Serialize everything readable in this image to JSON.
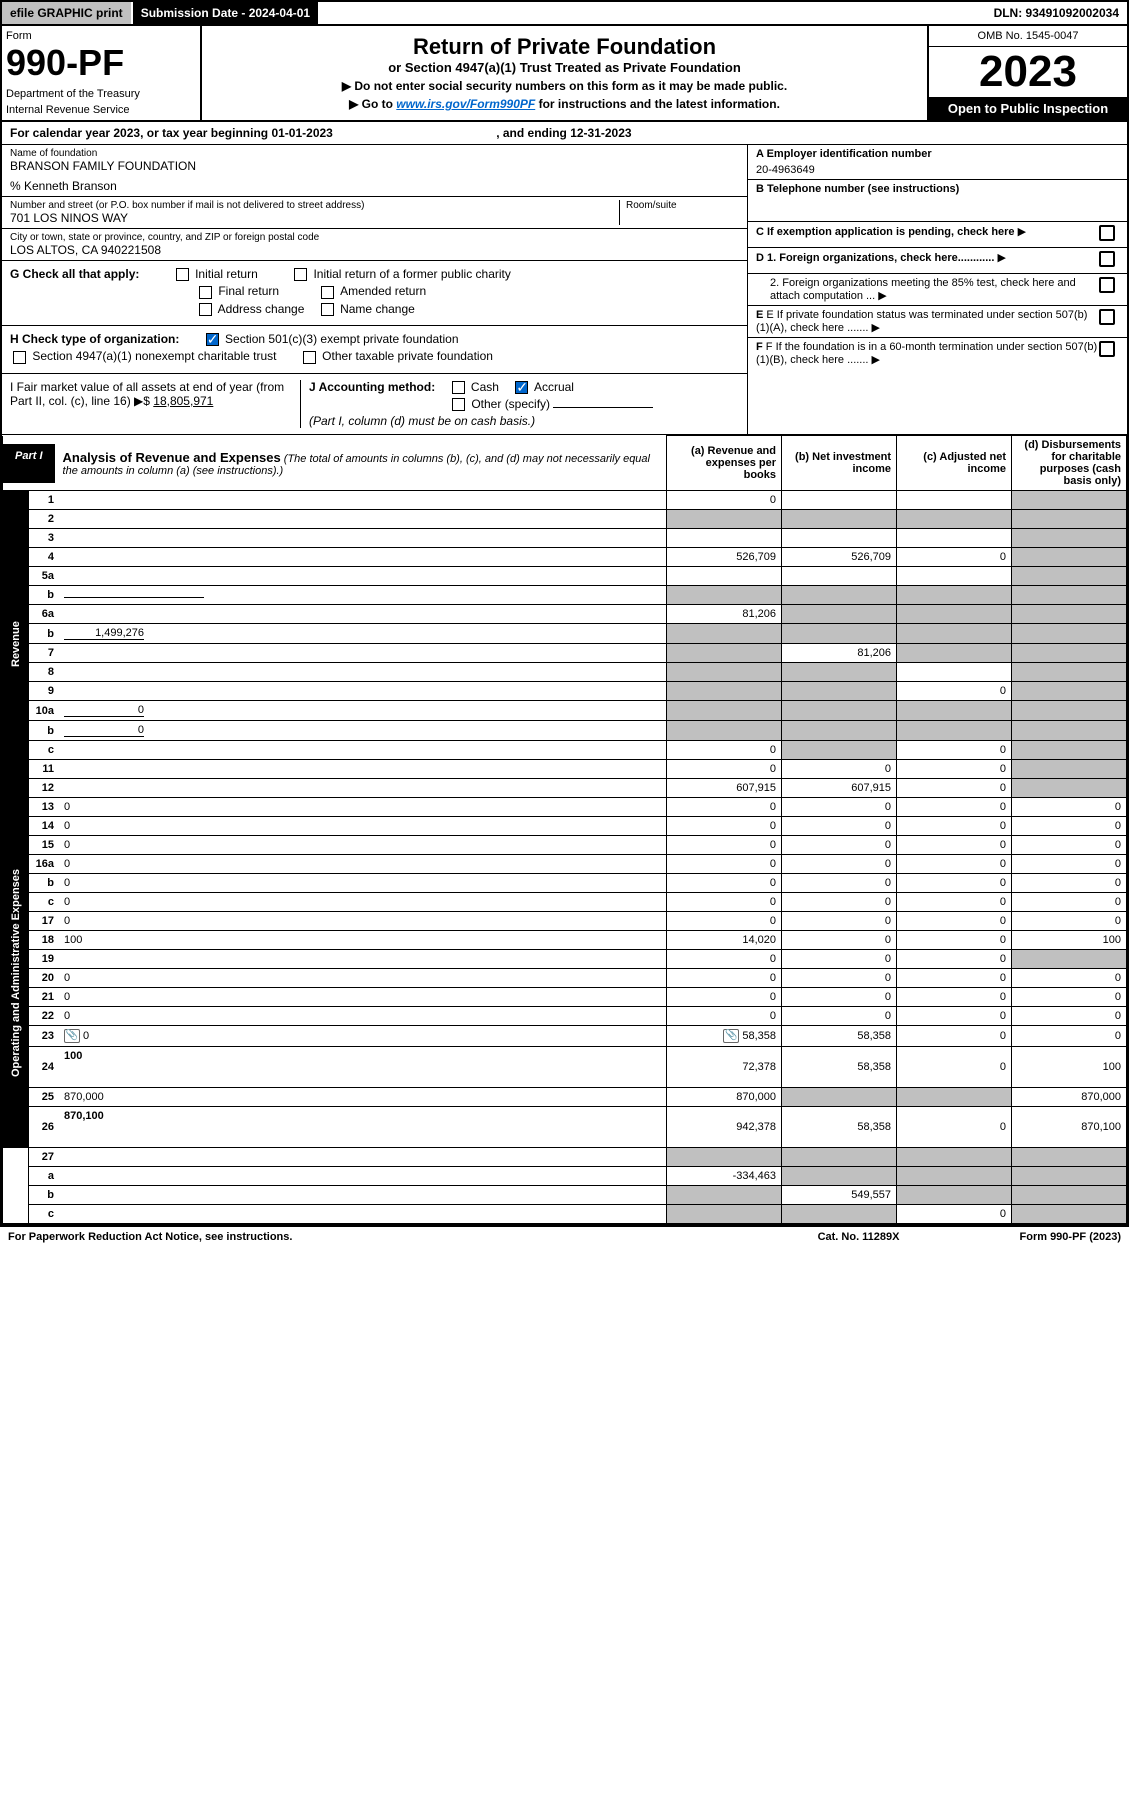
{
  "topbar": {
    "efile": "efile GRAPHIC print",
    "subdate_label": "Submission Date - 2024-04-01",
    "dln": "DLN: 93491092002034"
  },
  "header": {
    "form_label": "Form",
    "form_number": "990-PF",
    "dept": "Department of the Treasury",
    "irs": "Internal Revenue Service",
    "title": "Return of Private Foundation",
    "subtitle": "or Section 4947(a)(1) Trust Treated as Private Foundation",
    "note1": "▶ Do not enter social security numbers on this form as it may be made public.",
    "note2_pre": "▶ Go to ",
    "note2_link": "www.irs.gov/Form990PF",
    "note2_post": " for instructions and the latest information.",
    "omb": "OMB No. 1545-0047",
    "year": "2023",
    "open_public": "Open to Public Inspection"
  },
  "calendar": {
    "text_pre": "For calendar year 2023, or tax year beginning ",
    "begin": "01-01-2023",
    "mid": " , and ending ",
    "end": "12-31-2023"
  },
  "entity": {
    "name_label": "Name of foundation",
    "name": "BRANSON FAMILY FOUNDATION",
    "care_of": "% Kenneth Branson",
    "addr_label": "Number and street (or P.O. box number if mail is not delivered to street address)",
    "addr": "701 LOS NINOS WAY",
    "room_label": "Room/suite",
    "city_label": "City or town, state or province, country, and ZIP or foreign postal code",
    "city": "LOS ALTOS, CA  940221508",
    "ein_label": "A Employer identification number",
    "ein": "20-4963649",
    "phone_label": "B Telephone number (see instructions)",
    "c_label": "C If exemption application is pending, check here",
    "d1_label": "D 1. Foreign organizations, check here............",
    "d2_label": "2. Foreign organizations meeting the 85% test, check here and attach computation ...",
    "e_label": "E If private foundation status was terminated under section 507(b)(1)(A), check here .......",
    "f_label": "F If the foundation is in a 60-month termination under section 507(b)(1)(B), check here .......",
    "g_label": "G Check all that apply:",
    "g_opts": [
      "Initial return",
      "Initial return of a former public charity",
      "Final return",
      "Amended return",
      "Address change",
      "Name change"
    ],
    "h_label": "H Check type of organization:",
    "h_opt1": "Section 501(c)(3) exempt private foundation",
    "h_opt2": "Section 4947(a)(1) nonexempt charitable trust",
    "h_opt3": "Other taxable private foundation",
    "i_label_pre": "I Fair market value of all assets at end of year (from Part II, col. (c), line 16) ▶$ ",
    "i_value": "18,805,971",
    "j_label": "J Accounting method:",
    "j_cash": "Cash",
    "j_accrual": "Accrual",
    "j_other": "Other (specify)",
    "j_note": "(Part I, column (d) must be on cash basis.)"
  },
  "part1": {
    "label": "Part I",
    "title": "Analysis of Revenue and Expenses",
    "desc": " (The total of amounts in columns (b), (c), and (d) may not necessarily equal the amounts in column (a) (see instructions).)",
    "col_a": "(a) Revenue and expenses per books",
    "col_b": "(b) Net investment income",
    "col_c": "(c) Adjusted net income",
    "col_d": "(d) Disbursements for charitable purposes (cash basis only)"
  },
  "sidebars": {
    "revenue": "Revenue",
    "expenses": "Operating and Administrative Expenses"
  },
  "rows": [
    {
      "n": "1",
      "d": "",
      "a": "0",
      "b": "",
      "c": "",
      "shade": [
        "d"
      ]
    },
    {
      "n": "2",
      "d": "",
      "a": "",
      "b": "",
      "c": "",
      "shade": [
        "a",
        "b",
        "c",
        "d"
      ],
      "bold_not": true
    },
    {
      "n": "3",
      "d": "",
      "a": "",
      "b": "",
      "c": "",
      "shade": [
        "d"
      ]
    },
    {
      "n": "4",
      "d": "",
      "a": "526,709",
      "b": "526,709",
      "c": "0",
      "shade": [
        "d"
      ]
    },
    {
      "n": "5a",
      "d": "",
      "a": "",
      "b": "",
      "c": "",
      "shade": [
        "d"
      ]
    },
    {
      "n": "b",
      "d": "",
      "a": "",
      "b": "",
      "c": "",
      "shade": [
        "a",
        "b",
        "c",
        "d"
      ],
      "inline_box": true
    },
    {
      "n": "6a",
      "d": "",
      "a": "81,206",
      "b": "",
      "c": "",
      "shade": [
        "b",
        "c",
        "d"
      ]
    },
    {
      "n": "b",
      "d": "",
      "a": "",
      "b": "",
      "c": "",
      "shade": [
        "a",
        "b",
        "c",
        "d"
      ],
      "inline_val": "1,499,276"
    },
    {
      "n": "7",
      "d": "",
      "a": "",
      "b": "81,206",
      "c": "",
      "shade": [
        "a",
        "c",
        "d"
      ]
    },
    {
      "n": "8",
      "d": "",
      "a": "",
      "b": "",
      "c": "",
      "shade": [
        "a",
        "b",
        "d"
      ]
    },
    {
      "n": "9",
      "d": "",
      "a": "",
      "b": "",
      "c": "0",
      "shade": [
        "a",
        "b",
        "d"
      ]
    },
    {
      "n": "10a",
      "d": "",
      "a": "",
      "b": "",
      "c": "",
      "shade": [
        "a",
        "b",
        "c",
        "d"
      ],
      "inline_val": "0"
    },
    {
      "n": "b",
      "d": "",
      "a": "",
      "b": "",
      "c": "",
      "shade": [
        "a",
        "b",
        "c",
        "d"
      ],
      "inline_val": "0"
    },
    {
      "n": "c",
      "d": "",
      "a": "0",
      "b": "",
      "c": "0",
      "shade": [
        "b",
        "d"
      ]
    },
    {
      "n": "11",
      "d": "",
      "a": "0",
      "b": "0",
      "c": "0",
      "shade": [
        "d"
      ]
    },
    {
      "n": "12",
      "d": "",
      "a": "607,915",
      "b": "607,915",
      "c": "0",
      "shade": [
        "d"
      ],
      "bold": true
    }
  ],
  "expense_rows": [
    {
      "n": "13",
      "d": "0",
      "a": "0",
      "b": "0",
      "c": "0"
    },
    {
      "n": "14",
      "d": "0",
      "a": "0",
      "b": "0",
      "c": "0"
    },
    {
      "n": "15",
      "d": "0",
      "a": "0",
      "b": "0",
      "c": "0"
    },
    {
      "n": "16a",
      "d": "0",
      "a": "0",
      "b": "0",
      "c": "0"
    },
    {
      "n": "b",
      "d": "0",
      "a": "0",
      "b": "0",
      "c": "0"
    },
    {
      "n": "c",
      "d": "0",
      "a": "0",
      "b": "0",
      "c": "0"
    },
    {
      "n": "17",
      "d": "0",
      "a": "0",
      "b": "0",
      "c": "0"
    },
    {
      "n": "18",
      "d": "100",
      "a": "14,020",
      "b": "0",
      "c": "0"
    },
    {
      "n": "19",
      "d": "",
      "a": "0",
      "b": "0",
      "c": "0",
      "shade": [
        "d"
      ]
    },
    {
      "n": "20",
      "d": "0",
      "a": "0",
      "b": "0",
      "c": "0"
    },
    {
      "n": "21",
      "d": "0",
      "a": "0",
      "b": "0",
      "c": "0"
    },
    {
      "n": "22",
      "d": "0",
      "a": "0",
      "b": "0",
      "c": "0"
    },
    {
      "n": "23",
      "d": "0",
      "a": "58,358",
      "b": "58,358",
      "c": "0",
      "icon": true
    },
    {
      "n": "24",
      "d": "100",
      "a": "72,378",
      "b": "58,358",
      "c": "0",
      "bold": true,
      "tall": true
    },
    {
      "n": "25",
      "d": "870,000",
      "a": "870,000",
      "b": "",
      "c": "",
      "shade": [
        "b",
        "c"
      ]
    },
    {
      "n": "26",
      "d": "870,100",
      "a": "942,378",
      "b": "58,358",
      "c": "0",
      "bold": true,
      "tall": true
    }
  ],
  "bottom_rows": [
    {
      "n": "27",
      "d": "",
      "a": "",
      "b": "",
      "c": "",
      "shade": [
        "a",
        "b",
        "c",
        "d"
      ]
    },
    {
      "n": "a",
      "d": "",
      "a": "-334,463",
      "b": "",
      "c": "",
      "shade": [
        "b",
        "c",
        "d"
      ],
      "bold": true
    },
    {
      "n": "b",
      "d": "",
      "a": "",
      "b": "549,557",
      "c": "",
      "shade": [
        "a",
        "c",
        "d"
      ],
      "bold": true
    },
    {
      "n": "c",
      "d": "",
      "a": "",
      "b": "",
      "c": "0",
      "shade": [
        "a",
        "b",
        "d"
      ],
      "bold": true
    }
  ],
  "footer": {
    "left": "For Paperwork Reduction Act Notice, see instructions.",
    "mid": "Cat. No. 11289X",
    "right": "Form 990-PF (2023)"
  },
  "colors": {
    "shaded": "#c0c0c0",
    "black": "#000000",
    "link": "#0066cc"
  }
}
